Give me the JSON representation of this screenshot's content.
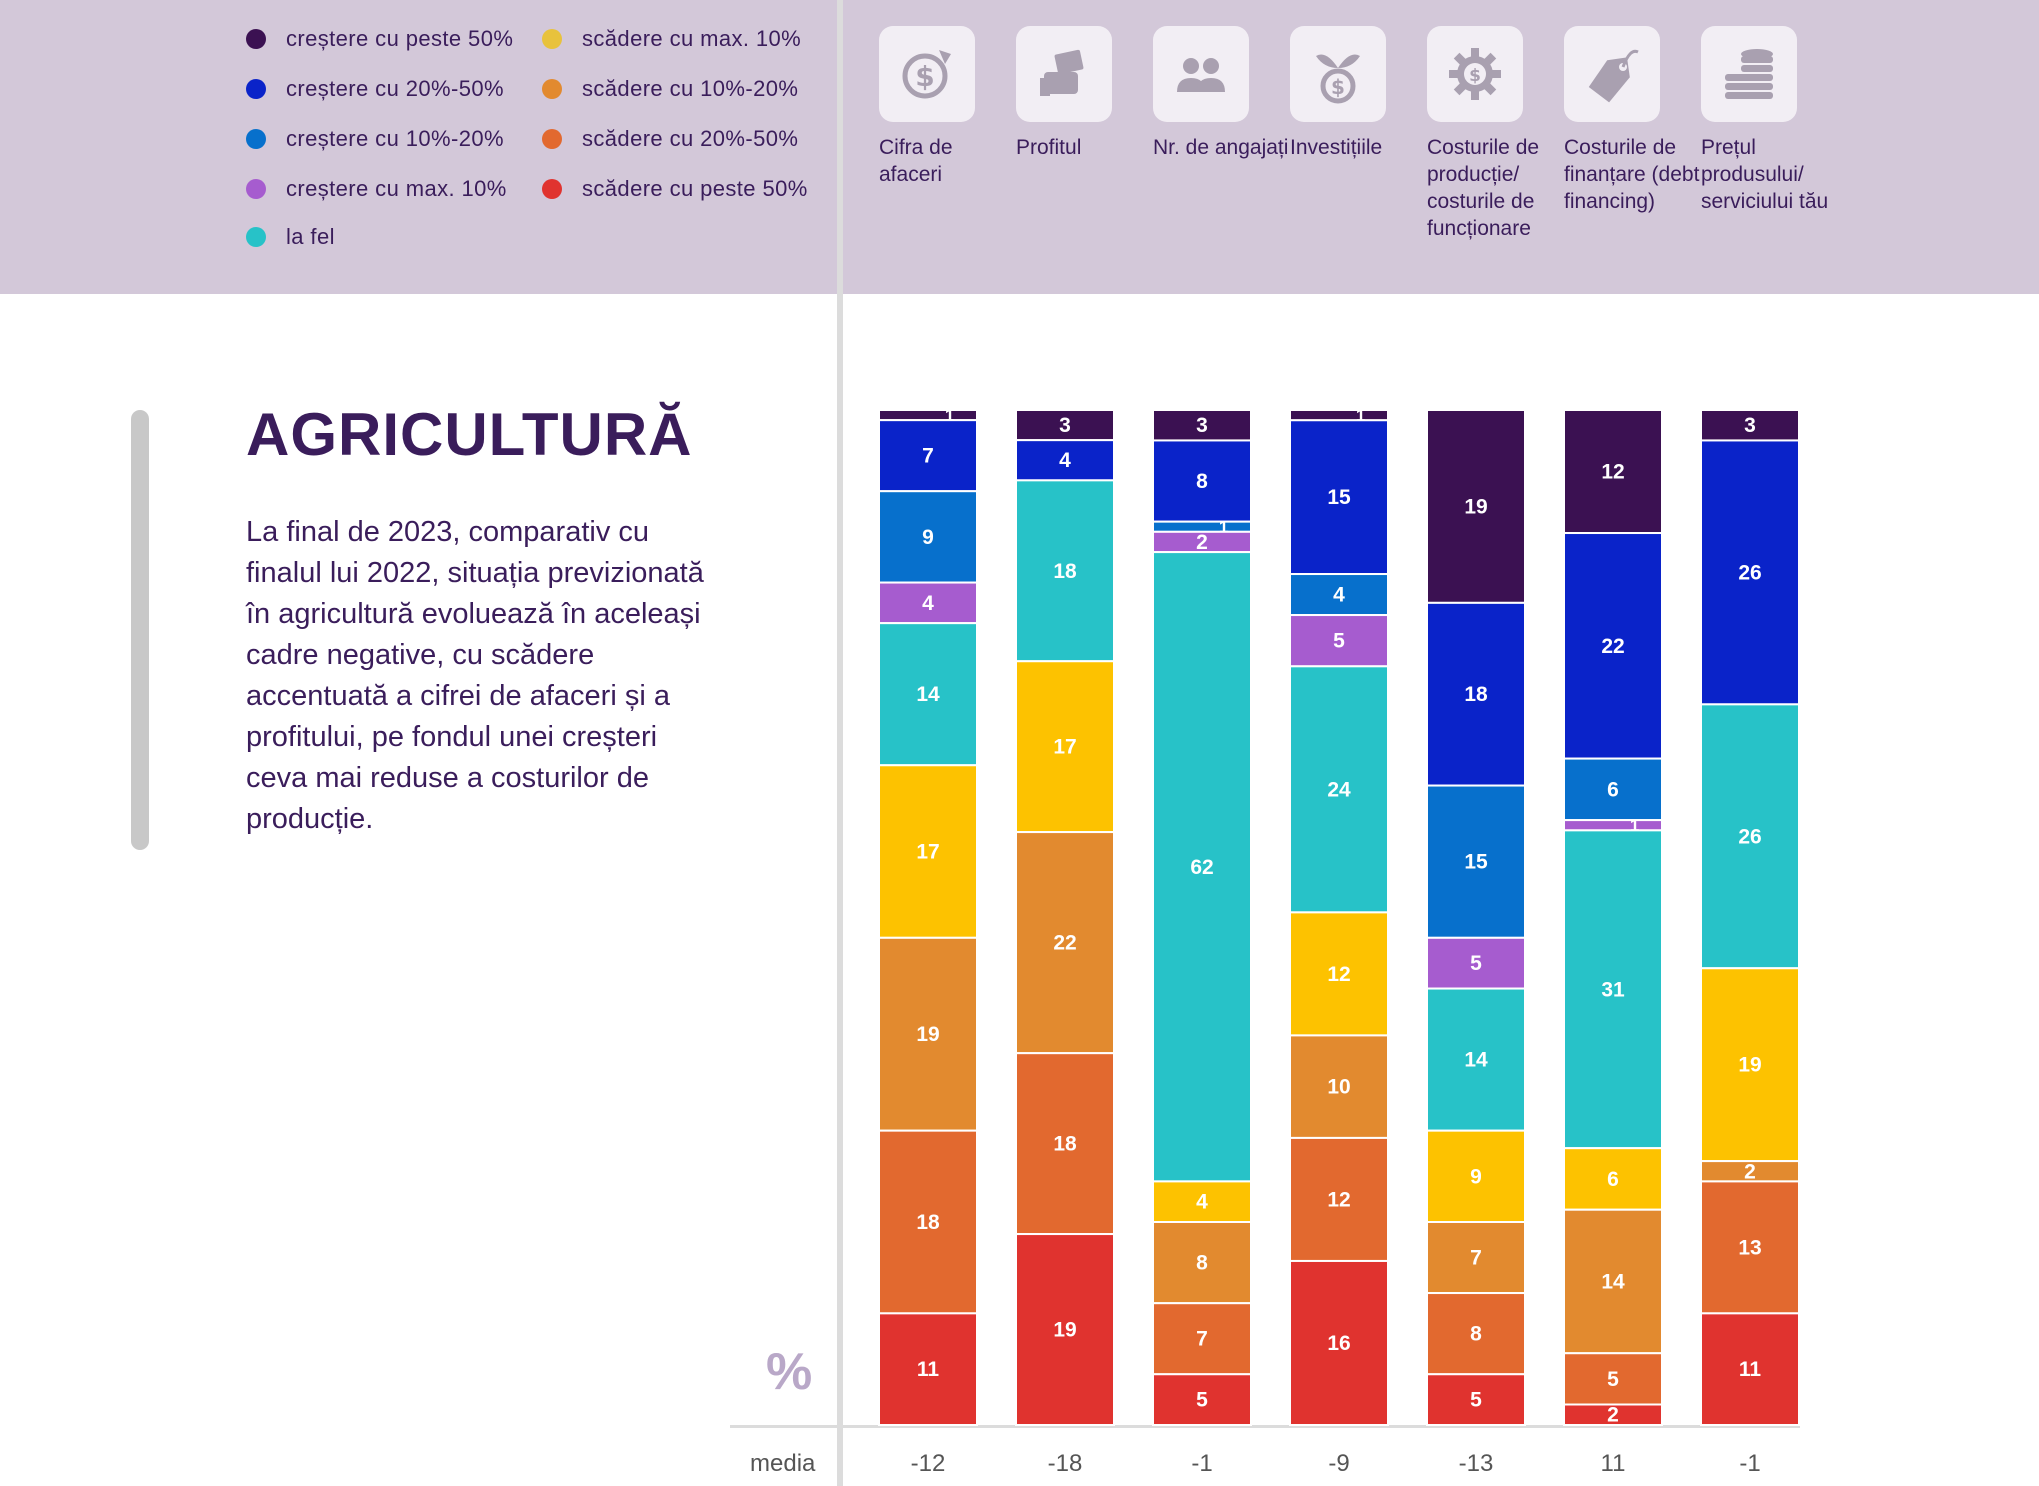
{
  "legend": [
    {
      "label": "creștere cu peste 50%",
      "color": "#3b1152"
    },
    {
      "label": "creștere cu 20%-50%",
      "color": "#0a23c9"
    },
    {
      "label": "creștere cu 10%-20%",
      "color": "#0770cc"
    },
    {
      "label": "creștere cu max. 10%",
      "color": "#a65ccf"
    },
    {
      "label": "la fel",
      "color": "#27c2c8"
    },
    {
      "label": "scădere cu max. 10%",
      "color": "#fdc200"
    },
    {
      "label": "scădere cu 10%-20%",
      "color": "#e28a2f"
    },
    {
      "label": "scădere cu 20%-50%",
      "color": "#e2692f"
    },
    {
      "label": "scădere cu peste 50%",
      "color": "#e0332f"
    }
  ],
  "columns": [
    {
      "label": "Cifra de afaceri",
      "icon": "dollar-up-icon"
    },
    {
      "label": "Profitul",
      "icon": "money-hand-icon"
    },
    {
      "label": "Nr. de angajați",
      "icon": "people-icon"
    },
    {
      "label": "Investițiile",
      "icon": "money-plant-icon"
    },
    {
      "label": "Costurile de producție/ costurile de funcționare",
      "icon": "gear-dollar-icon"
    },
    {
      "label": "Costurile de finanțare (debt financing)",
      "icon": "price-tag-icon"
    },
    {
      "label": "Prețul produsului/ serviciului tău",
      "icon": "coin-stack-icon"
    }
  ],
  "section": {
    "title": "AGRICULTURĂ",
    "description": "La final de 2023, comparativ cu finalul lui 2022, situația previzionată în agricultură evoluează în aceleași cadre negative, cu scădere accentuată a cifrei de afaceri și a profitului, pe fondul unei creșteri ceva mai reduse a costurilor de producție."
  },
  "unit": "%",
  "media_label": "media",
  "chart_data": {
    "type": "bar",
    "stacked": true,
    "categories": [
      "Cifra de afaceri",
      "Profitul",
      "Nr. de angajați",
      "Investițiile",
      "Costurile de producție/ costurile de funcționare",
      "Costurile de finanțare (debt financing)",
      "Prețul produsului/ serviciului tău"
    ],
    "series": [
      {
        "name": "creștere cu peste 50%",
        "values": [
          1,
          3,
          3,
          1,
          19,
          12,
          3
        ]
      },
      {
        "name": "creștere cu 20%-50%",
        "values": [
          7,
          4,
          8,
          15,
          18,
          22,
          26
        ]
      },
      {
        "name": "creștere cu 10%-20%",
        "values": [
          9,
          0,
          1,
          4,
          15,
          6,
          0
        ]
      },
      {
        "name": "creștere cu max. 10%",
        "values": [
          4,
          0,
          2,
          5,
          5,
          1,
          0
        ]
      },
      {
        "name": "la fel",
        "values": [
          14,
          18,
          62,
          24,
          14,
          31,
          26
        ]
      },
      {
        "name": "scădere cu max. 10%",
        "values": [
          17,
          17,
          4,
          12,
          9,
          6,
          19
        ]
      },
      {
        "name": "scădere cu 10%-20%",
        "values": [
          19,
          22,
          8,
          10,
          7,
          14,
          2
        ]
      },
      {
        "name": "scădere cu 20%-50%",
        "values": [
          18,
          18,
          7,
          12,
          8,
          5,
          13
        ]
      },
      {
        "name": "scădere cu peste 50%",
        "values": [
          11,
          19,
          5,
          16,
          5,
          2,
          11
        ]
      }
    ],
    "media": [
      "-12",
      "-18",
      "-1",
      "-9",
      "-13",
      "11",
      "-1"
    ],
    "ylim": [
      0,
      100
    ],
    "xlabel": "",
    "ylabel": ""
  }
}
